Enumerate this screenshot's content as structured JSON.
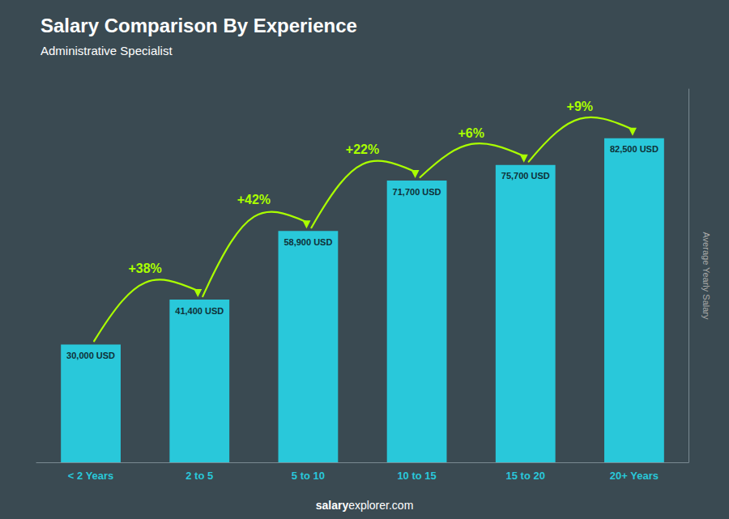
{
  "chart_data": {
    "type": "bar",
    "title": "Salary Comparison By Experience",
    "subtitle": "Administrative Specialist",
    "categories": [
      "< 2 Years",
      "2 to 5",
      "5 to 10",
      "10 to 15",
      "15 to 20",
      "20+ Years"
    ],
    "values": [
      30000,
      41400,
      58900,
      71700,
      75700,
      82500
    ],
    "value_labels": [
      "30,000 USD",
      "41,400 USD",
      "58,900 USD",
      "71,700 USD",
      "75,700 USD",
      "82,500 USD"
    ],
    "data_labels": true,
    "color": "#29C8DA",
    "ylabel": "Average Yearly Salary",
    "ylim": [
      0,
      95000
    ],
    "tick_labels": "x",
    "grid": false,
    "annotations": [
      "+38%",
      "+42%",
      "+22%",
      "+6%",
      "+9%"
    ],
    "footer": [
      "salary",
      "explorer.com"
    ]
  }
}
